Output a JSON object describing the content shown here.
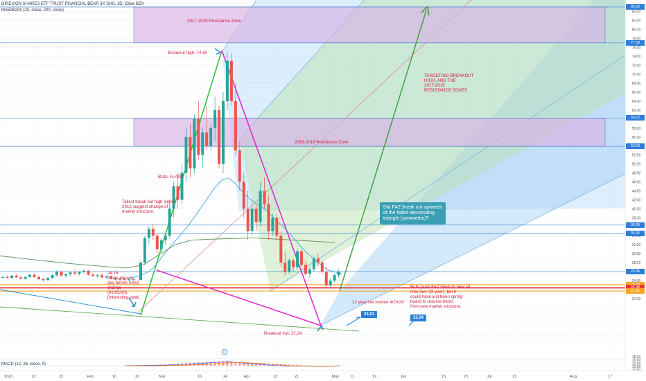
{
  "header": {
    "symbol_line": "DIREXION SHARES ETF TRUST FINANCIAL BEAR 3X SHS, 1D, Cboe BZX",
    "ma_line": "MA50B200 (20, close, 200, close)",
    "macd_label": "MACD (12, 26, close, 9)"
  },
  "colors": {
    "candle_up": "#26a69a",
    "candle_down": "#ef5350",
    "resistance_fill": "#d9b3e6",
    "resistance_border": "#6b5ba8",
    "fork_fill_blue": "#9fcff5",
    "fork_fill_green": "#b7e0a8",
    "pink_line": "#e02bd2",
    "green_line": "#36c236",
    "arrow_green": "#43a047",
    "axis_tag_blue": "#2e7fd6",
    "support_red": "#e53935",
    "support_orange": "#f5a623"
  },
  "annotations": {
    "resistance_2017": "2017-2019 Resistance Zone",
    "resistance_2018": "2018-2019 Resistance Zone",
    "breakout_high": "Breakout high, 74.60",
    "bull_flag": "BULL FLAG?",
    "tallest": "Tallest break out high since\n2016 suggest change of\nmarket structure.",
    "close_before": "24.16\nClose price a\nday before trend\nchange\n(02/02/20)\n[Interesting date]",
    "targeting": "TARGETING BREAKOUT\nHIGH, AND THE\n2017-2019\nRESISTANCE ZONES",
    "low_broken": "12 year low broken 4/29/20",
    "bulls_push": "Bulls push FAZ down to new all\ntime low (12 year), but it\ncould have just been spring\nboard to resume trend\nfrom new market structure.",
    "breakout_low": "Breakout low, 22.24",
    "callout": "Did FAZ break out upwards\nof the failed descending\ntriangle (symmetric)?",
    "badge_a": "23.01",
    "badge_b": "22.24",
    "dividend": "D"
  },
  "price_tags": [
    {
      "value": "85.00",
      "color": "#2e7fd6"
    },
    {
      "value": "77.00",
      "color": "#2e7fd6"
    },
    {
      "value": "60.22",
      "color": "#2e7fd6"
    },
    {
      "value": "53.93",
      "color": "#2e7fd6"
    },
    {
      "value": "36.38",
      "color": "#2e7fd6"
    },
    {
      "value": "34.46",
      "color": "#2e7fd6"
    },
    {
      "value": "25.96",
      "color": "#2e7fd6"
    },
    {
      "value": "23.09",
      "color": "#f5a623"
    },
    {
      "value": "22.38",
      "color": "#e53935"
    },
    {
      "value": "21.65",
      "color": "#f5a623"
    }
  ],
  "chart_data": {
    "type": "candlestick",
    "y_axis_ticks": [
      "84.00",
      "82.00",
      "80.00",
      "78.00",
      "76.00",
      "74.00",
      "72.00",
      "70.00",
      "68.00",
      "66.00",
      "64.00",
      "62.00",
      "60.00",
      "58.00",
      "56.00",
      "54.00",
      "52.00",
      "50.00",
      "48.00",
      "46.00",
      "44.00",
      "42.00",
      "40.00",
      "38.00",
      "36.00",
      "34.00",
      "32.00",
      "30.00",
      "28.00",
      "26.00",
      "24.00",
      "22.00",
      "20.00",
      "18.00",
      "16.00",
      "14.00",
      "12.00",
      "10.00"
    ],
    "ylim": [
      9,
      85
    ],
    "x_axis_ticks": [
      "2020",
      "13",
      "22",
      "Feb",
      "10",
      "20",
      "Mar",
      "16",
      "24",
      "Apr",
      "13",
      "21",
      "May",
      "11",
      "19",
      "Jun",
      "15",
      "23",
      "Jul",
      "13",
      "Aug",
      "17"
    ],
    "levels": {
      "breakout_high": 74.6,
      "breakout_low": 22.24,
      "close_before_trend_change": 24.16,
      "resistance_2017_2019": [
        77.0,
        85.0
      ],
      "resistance_2018_2019": [
        53.93,
        60.22
      ]
    },
    "candles": [
      [
        24.6,
        25.0,
        24.4,
        24.8
      ],
      [
        24.8,
        25.2,
        24.5,
        24.6
      ],
      [
        24.6,
        25.3,
        24.5,
        25.1
      ],
      [
        25.1,
        25.4,
        24.6,
        24.7
      ],
      [
        24.7,
        25.0,
        24.2,
        24.4
      ],
      [
        24.4,
        24.9,
        24.2,
        24.8
      ],
      [
        24.8,
        25.5,
        24.6,
        25.3
      ],
      [
        25.3,
        25.6,
        24.6,
        24.8
      ],
      [
        24.8,
        25.1,
        24.1,
        24.3
      ],
      [
        24.3,
        24.6,
        23.8,
        24.1
      ],
      [
        24.1,
        24.8,
        23.9,
        24.6
      ],
      [
        24.6,
        25.4,
        24.3,
        25.2
      ],
      [
        25.2,
        26.3,
        24.8,
        26.0
      ],
      [
        26.0,
        26.2,
        24.9,
        25.1
      ],
      [
        25.1,
        25.6,
        24.6,
        25.4
      ],
      [
        25.4,
        26.1,
        25.0,
        25.8
      ],
      [
        25.8,
        26.4,
        25.3,
        25.5
      ],
      [
        25.5,
        26.1,
        25.1,
        25.9
      ],
      [
        25.9,
        26.5,
        25.5,
        26.2
      ],
      [
        26.2,
        26.3,
        25.1,
        25.3
      ],
      [
        25.3,
        25.7,
        24.8,
        25.0
      ],
      [
        25.0,
        25.5,
        24.6,
        25.2
      ],
      [
        25.2,
        25.6,
        24.5,
        24.7
      ],
      [
        24.7,
        25.1,
        24.4,
        24.9
      ],
      [
        24.9,
        25.2,
        24.3,
        24.5
      ],
      [
        24.5,
        24.8,
        24.0,
        24.2
      ],
      [
        24.2,
        24.6,
        23.9,
        24.4
      ],
      [
        24.4,
        24.7,
        24.0,
        24.1
      ],
      [
        24.1,
        24.5,
        23.8,
        24.3
      ],
      [
        24.3,
        24.5,
        23.9,
        24.16
      ],
      [
        24.16,
        28.5,
        24.0,
        28.0
      ],
      [
        28.0,
        34.0,
        27.5,
        33.5
      ],
      [
        33.5,
        36.0,
        32.0,
        35.5
      ],
      [
        35.5,
        36.5,
        33.0,
        34.0
      ],
      [
        34.0,
        34.5,
        30.0,
        31.0
      ],
      [
        31.0,
        33.5,
        30.5,
        33.0
      ],
      [
        33.0,
        34.5,
        32.0,
        34.0
      ],
      [
        34.0,
        42.0,
        33.5,
        40.0
      ],
      [
        40.0,
        46.0,
        38.0,
        45.0
      ],
      [
        45.0,
        48.0,
        40.0,
        42.0
      ],
      [
        42.0,
        50.0,
        41.0,
        48.0
      ],
      [
        48.0,
        58.0,
        46.0,
        56.0
      ],
      [
        56.0,
        59.0,
        47.0,
        49.0
      ],
      [
        49.0,
        61.0,
        48.0,
        60.0
      ],
      [
        60.0,
        64.0,
        51.0,
        52.0
      ],
      [
        52.0,
        58.0,
        49.0,
        57.0
      ],
      [
        57.0,
        63.0,
        53.0,
        54.0
      ],
      [
        54.0,
        59.0,
        53.0,
        58.0
      ],
      [
        58.0,
        65.0,
        55.0,
        62.0
      ],
      [
        62.0,
        63.0,
        49.0,
        50.0
      ],
      [
        50.0,
        66.0,
        48.0,
        64.0
      ],
      [
        64.0,
        75.0,
        62.0,
        73.0
      ],
      [
        73.0,
        74.6,
        63.0,
        64.0
      ],
      [
        64.0,
        68.0,
        52.0,
        53.0
      ],
      [
        53.0,
        55.0,
        44.0,
        46.0
      ],
      [
        46.0,
        48.0,
        38.0,
        40.0
      ],
      [
        40.0,
        44.0,
        33.0,
        35.0
      ],
      [
        35.0,
        42.0,
        34.0,
        40.0
      ],
      [
        40.0,
        41.0,
        35.0,
        37.0
      ],
      [
        37.0,
        46.0,
        36.0,
        44.0
      ],
      [
        44.0,
        47.0,
        40.0,
        41.0
      ],
      [
        41.0,
        43.0,
        33.0,
        35.0
      ],
      [
        35.0,
        39.0,
        34.0,
        38.0
      ],
      [
        38.0,
        39.0,
        33.0,
        34.0
      ],
      [
        34.0,
        35.0,
        27.0,
        28.0
      ],
      [
        28.0,
        30.5,
        25.0,
        26.0
      ],
      [
        26.0,
        29.0,
        25.5,
        28.5
      ],
      [
        28.5,
        29.0,
        26.0,
        27.0
      ],
      [
        27.0,
        31.0,
        26.5,
        30.5
      ],
      [
        30.5,
        31.0,
        27.0,
        27.5
      ],
      [
        27.5,
        28.5,
        25.0,
        25.5
      ],
      [
        25.5,
        27.0,
        24.5,
        26.5
      ],
      [
        26.5,
        29.5,
        26.0,
        29.0
      ],
      [
        29.0,
        30.0,
        27.0,
        28.0
      ],
      [
        28.0,
        28.5,
        25.5,
        26.0
      ],
      [
        26.0,
        27.0,
        22.24,
        22.9
      ],
      [
        22.9,
        24.5,
        22.6,
        24.0
      ],
      [
        24.0,
        25.5,
        23.6,
        25.2
      ],
      [
        25.2,
        26.5,
        24.6,
        25.96
      ]
    ],
    "ma20": [
      24.6,
      24.8,
      25.3,
      26.0,
      27.4,
      29.3,
      31.2,
      32.9,
      34.6,
      36.4,
      38.5,
      40.6,
      42.8,
      44.9,
      46.4,
      46.9,
      45.6,
      43.9,
      42.4,
      41.3,
      40.4,
      39.1,
      37.6,
      36.3,
      34.7,
      33.0,
      31.3,
      29.8,
      28.5,
      27.3,
      26.3,
      25.9,
      25.6
    ],
    "ma200": [
      29.5,
      29.1,
      28.7,
      28.3,
      27.9,
      27.6,
      27.3,
      27.0,
      26.8,
      27.5,
      29.8,
      32.0,
      33.0,
      33.2,
      33.3,
      33.4,
      33.5,
      33.3,
      33.1,
      32.9,
      32.7,
      32.5
    ],
    "series": [
      {
        "name": "MA 20",
        "color": "#3aa8e8"
      },
      {
        "name": "MA 200",
        "color": "#5e8c5e"
      }
    ]
  }
}
